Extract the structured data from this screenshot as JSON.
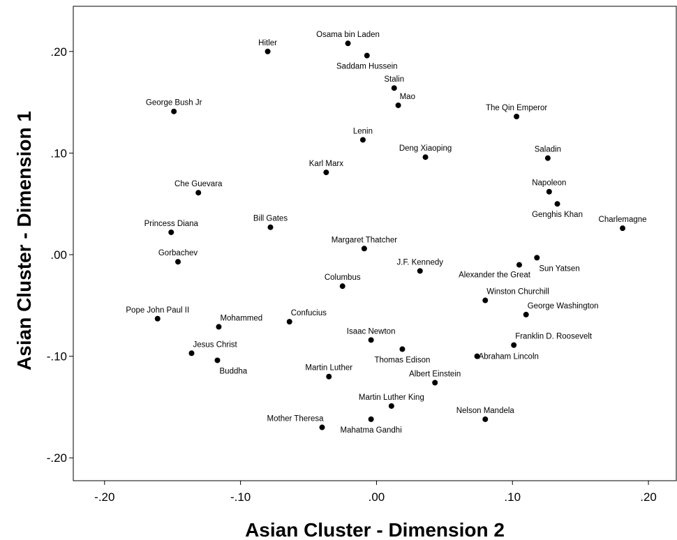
{
  "chart_data": {
    "type": "scatter",
    "title": "",
    "xlabel": "Asian Cluster - Dimension 2",
    "ylabel": "Asian Cluster - Dimension 1",
    "xlim": [
      -0.223,
      0.2205
    ],
    "ylim": [
      -0.2225,
      0.2445
    ],
    "x_ticks": [
      -0.2,
      -0.1,
      0.0,
      0.1,
      0.2
    ],
    "x_tick_labels": [
      "-.20",
      "-.10",
      ".00",
      ".10",
      ".20"
    ],
    "y_ticks": [
      -0.2,
      -0.1,
      0.0,
      0.1,
      0.2
    ],
    "y_tick_labels": [
      "-.20",
      "-.10",
      ".00",
      ".10",
      ".20"
    ],
    "grid": false,
    "legend": false,
    "points": [
      {
        "label": "Hitler",
        "x": -0.08,
        "y": 0.2,
        "pos": "above"
      },
      {
        "label": "Osama bin Laden",
        "x": -0.021,
        "y": 0.208,
        "pos": "above"
      },
      {
        "label": "Saddam Hussein",
        "x": -0.007,
        "y": 0.196,
        "pos": "below"
      },
      {
        "label": "Stalin",
        "x": 0.013,
        "y": 0.164,
        "pos": "above"
      },
      {
        "label": "Mao",
        "x": 0.016,
        "y": 0.147,
        "pos": "above-right"
      },
      {
        "label": "George Bush Jr",
        "x": -0.149,
        "y": 0.141,
        "pos": "above"
      },
      {
        "label": "The Qin Emperor",
        "x": 0.103,
        "y": 0.136,
        "pos": "above"
      },
      {
        "label": "Lenin",
        "x": -0.01,
        "y": 0.113,
        "pos": "above"
      },
      {
        "label": "Deng Xiaoping",
        "x": 0.036,
        "y": 0.096,
        "pos": "above"
      },
      {
        "label": "Saladin",
        "x": 0.126,
        "y": 0.095,
        "pos": "above"
      },
      {
        "label": "Karl Marx",
        "x": -0.037,
        "y": 0.081,
        "pos": "above"
      },
      {
        "label": "Che Guevara",
        "x": -0.131,
        "y": 0.061,
        "pos": "above"
      },
      {
        "label": "Napoleon",
        "x": 0.127,
        "y": 0.062,
        "pos": "above"
      },
      {
        "label": "Genghis Khan",
        "x": 0.133,
        "y": 0.05,
        "pos": "below"
      },
      {
        "label": "Charlemagne",
        "x": 0.181,
        "y": 0.026,
        "pos": "above"
      },
      {
        "label": "Princess Diana",
        "x": -0.151,
        "y": 0.022,
        "pos": "above"
      },
      {
        "label": "Bill Gates",
        "x": -0.078,
        "y": 0.027,
        "pos": "above"
      },
      {
        "label": "Margaret Thatcher",
        "x": -0.009,
        "y": 0.006,
        "pos": "above"
      },
      {
        "label": "Gorbachev",
        "x": -0.146,
        "y": -0.007,
        "pos": "above"
      },
      {
        "label": "Sun Yatsen",
        "x": 0.118,
        "y": -0.003,
        "pos": "below-right"
      },
      {
        "label": "J.F. Kennedy",
        "x": 0.032,
        "y": -0.016,
        "pos": "above"
      },
      {
        "label": "Alexander the Great",
        "x": 0.105,
        "y": -0.01,
        "pos": "below-left"
      },
      {
        "label": "Columbus",
        "x": -0.025,
        "y": -0.031,
        "pos": "above"
      },
      {
        "label": "Winston Churchill",
        "x": 0.08,
        "y": -0.045,
        "pos": "above-right"
      },
      {
        "label": "George Washington",
        "x": 0.11,
        "y": -0.059,
        "pos": "above-right"
      },
      {
        "label": "Pope John Paul II",
        "x": -0.161,
        "y": -0.063,
        "pos": "above"
      },
      {
        "label": "Confucius",
        "x": -0.064,
        "y": -0.066,
        "pos": "above-right"
      },
      {
        "label": "Mohammed",
        "x": -0.116,
        "y": -0.071,
        "pos": "above-right"
      },
      {
        "label": "Isaac Newton",
        "x": -0.004,
        "y": -0.084,
        "pos": "above"
      },
      {
        "label": "Thomas Edison",
        "x": 0.019,
        "y": -0.093,
        "pos": "below"
      },
      {
        "label": "Franklin D. Roosevelt",
        "x": 0.101,
        "y": -0.089,
        "pos": "above-right"
      },
      {
        "label": "Abraham Lincoln",
        "x": 0.074,
        "y": -0.1,
        "pos": "right"
      },
      {
        "label": "Jesus Christ",
        "x": -0.136,
        "y": -0.097,
        "pos": "above-right"
      },
      {
        "label": "Buddha",
        "x": -0.117,
        "y": -0.104,
        "pos": "below-right"
      },
      {
        "label": "Martin Luther",
        "x": -0.035,
        "y": -0.12,
        "pos": "above"
      },
      {
        "label": "Albert Einstein",
        "x": 0.043,
        "y": -0.126,
        "pos": "above"
      },
      {
        "label": "Martin Luther King",
        "x": 0.011,
        "y": -0.149,
        "pos": "above"
      },
      {
        "label": "Nelson Mandela",
        "x": 0.08,
        "y": -0.162,
        "pos": "above"
      },
      {
        "label": "Mother Theresa",
        "x": -0.04,
        "y": -0.17,
        "pos": "above-left"
      },
      {
        "label": "Mahatma Gandhi",
        "x": -0.004,
        "y": -0.162,
        "pos": "below"
      }
    ]
  }
}
